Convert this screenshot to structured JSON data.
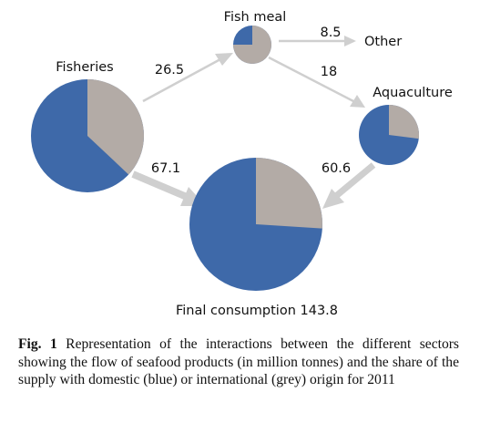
{
  "colors": {
    "domestic": "#3e69a9",
    "international": "#b3aba6",
    "arrow": "#cfcfcf",
    "background": "#ffffff"
  },
  "nodes": {
    "fisheries": {
      "label": "Fisheries",
      "domestic_share": 0.63
    },
    "fish_meal": {
      "label": "Fish meal",
      "domestic_share": 0.25
    },
    "aquaculture": {
      "label": "Aquaculture",
      "domestic_share": 0.73
    },
    "final_consumption": {
      "label": "Final consumption 143.8",
      "domestic_share": 0.74
    },
    "other": {
      "label": "Other"
    }
  },
  "flows": {
    "fisheries_to_fish_meal": "26.5",
    "fish_meal_to_other": "8.5",
    "fish_meal_to_aquaculture": "18",
    "fisheries_to_final": "67.1",
    "aquaculture_to_final": "60.6"
  },
  "caption": {
    "prefix": "Fig. 1",
    "text": " Representation of the interactions between the different sectors showing the flow of seafood products (in million tonnes) and the share of the supply with domestic (blue) or international (grey) origin for 2011"
  }
}
